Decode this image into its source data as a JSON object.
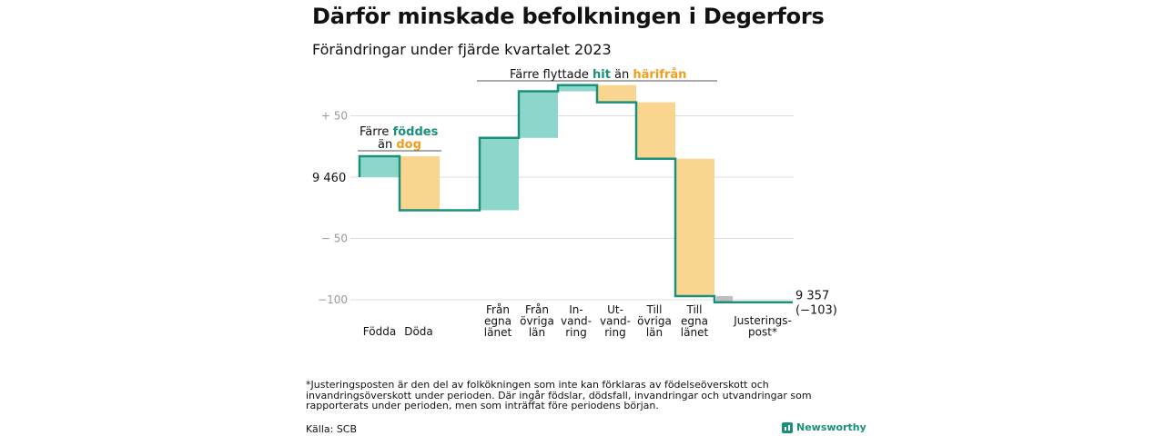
{
  "title": "Därför minskade befolkningen i Degerfors",
  "subtitle": "Förändringar under fjärde kvartalet 2023",
  "colors": {
    "in": "#8dd6cc",
    "out": "#fad58f",
    "line": "#1a8f7a",
    "adjust": "#bdbdbd",
    "highlight_teal": "#1a8f7a",
    "highlight_orange": "#f29d1a"
  },
  "annotations": {
    "births": {
      "prefix": "Färre",
      "hi": "föddes",
      "line2_prefix": "än",
      "line2_hi": "dog"
    },
    "migration": {
      "prefix": "Färre flyttade",
      "hi1": "hit",
      "mid": "än",
      "hi2": "härifrån"
    }
  },
  "footnote": "*Justeringsposten är den del av folkökningen som inte kan förklaras av födelseöverskott och invandringsöverskott under perioden. Där ingår födslar, dödsfall, invandringar och utvandringar som rapporterats under perioden, men som inträffat före periodens början.",
  "source": "Källa: SCB",
  "logo": "Newsworthy",
  "chart_data": {
    "type": "waterfall",
    "start_label": "9 460",
    "end_label": "9 357",
    "end_change_label": "(−103)",
    "start_value": 0,
    "y_ticks": [
      {
        "value": 50,
        "label": "+ 50"
      },
      {
        "value": 0,
        "label": ""
      },
      {
        "value": -50,
        "label": "− 50"
      },
      {
        "value": -100,
        "label": "−100"
      }
    ],
    "ylim": [
      -110,
      70
    ],
    "steps": [
      {
        "label": "Födda",
        "delta": 17,
        "kind": "in"
      },
      {
        "label": "Döda",
        "delta": -44,
        "kind": "out"
      },
      {
        "label": "",
        "delta": 0,
        "kind": "none"
      },
      {
        "label": "Från egna länet",
        "delta": 59,
        "kind": "in"
      },
      {
        "label": "Från övriga län",
        "delta": 38,
        "kind": "in"
      },
      {
        "label": "In- vand- ring",
        "delta": 5,
        "kind": "in"
      },
      {
        "label": "Ut- vand- ring",
        "delta": -14,
        "kind": "out"
      },
      {
        "label": "Till övriga län",
        "delta": -46,
        "kind": "out"
      },
      {
        "label": "Till egna länet",
        "delta": -112,
        "kind": "out"
      },
      {
        "label": "Justerings- post*",
        "delta": -5,
        "kind": "adjust"
      }
    ],
    "category_labels": [
      {
        "lines": [
          "Födda"
        ]
      },
      {
        "lines": [
          "Döda"
        ]
      },
      {
        "lines": [
          "Från",
          "egna",
          "länet"
        ]
      },
      {
        "lines": [
          "Från",
          "övriga",
          "län"
        ]
      },
      {
        "lines": [
          "In-",
          "vand-",
          "ring"
        ]
      },
      {
        "lines": [
          "Ut-",
          "vand-",
          "ring"
        ]
      },
      {
        "lines": [
          "Till",
          "övriga",
          "län"
        ]
      },
      {
        "lines": [
          "Till",
          "egna",
          "länet"
        ]
      },
      {
        "lines": [
          "Justerings-",
          "post*"
        ]
      }
    ]
  }
}
